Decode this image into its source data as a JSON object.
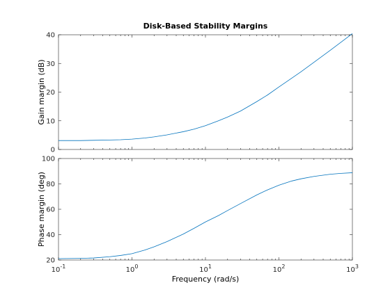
{
  "chart_data": [
    {
      "type": "line",
      "title": "Disk-Based Stability Margins",
      "xlabel": "",
      "ylabel": "Gain margin (dB)",
      "xscale": "log",
      "xlim": [
        0.1,
        1000
      ],
      "ylim": [
        0,
        40
      ],
      "yticks": [
        0,
        10,
        20,
        30,
        40
      ],
      "xtick_labels": [],
      "grid": false,
      "series": [
        {
          "color": "#0072bd",
          "x": [
            0.1,
            0.2,
            0.3,
            0.5,
            0.7,
            1,
            1.5,
            2,
            3,
            5,
            7,
            10,
            15,
            20,
            30,
            50,
            70,
            100,
            150,
            200,
            300,
            500,
            700,
            1000
          ],
          "y": [
            3.1,
            3.1,
            3.2,
            3.3,
            3.4,
            3.6,
            4.0,
            4.4,
            5.1,
            6.2,
            7.1,
            8.3,
            10.0,
            11.3,
            13.4,
            16.7,
            19.0,
            21.8,
            24.9,
            27.1,
            30.4,
            34.6,
            37.4,
            40.4
          ]
        }
      ]
    },
    {
      "type": "line",
      "title": "",
      "xlabel": "Frequency (rad/s)",
      "ylabel": "Phase margin (deg)",
      "xscale": "log",
      "xlim": [
        0.1,
        1000
      ],
      "ylim": [
        20,
        100
      ],
      "yticks": [
        20,
        40,
        60,
        80,
        100
      ],
      "xtick_labels": [
        {
          "base": "10",
          "exp": "-1",
          "value": 0.1
        },
        {
          "base": "10",
          "exp": "0",
          "value": 1
        },
        {
          "base": "10",
          "exp": "1",
          "value": 10
        },
        {
          "base": "10",
          "exp": "2",
          "value": 100
        },
        {
          "base": "10",
          "exp": "3",
          "value": 1000
        }
      ],
      "grid": false,
      "series": [
        {
          "color": "#0072bd",
          "x": [
            0.1,
            0.2,
            0.3,
            0.5,
            0.7,
            1,
            1.5,
            2,
            3,
            5,
            7,
            10,
            15,
            20,
            30,
            50,
            70,
            100,
            150,
            200,
            300,
            500,
            700,
            1000
          ],
          "y": [
            21.1,
            21.3,
            21.6,
            22.6,
            23.6,
            25.0,
            27.9,
            30.4,
            34.5,
            40.5,
            45.0,
            50.0,
            55.0,
            59.0,
            64.5,
            71.3,
            75.3,
            79.0,
            82.3,
            84.0,
            85.9,
            87.6,
            88.3,
            88.8
          ]
        }
      ]
    }
  ]
}
